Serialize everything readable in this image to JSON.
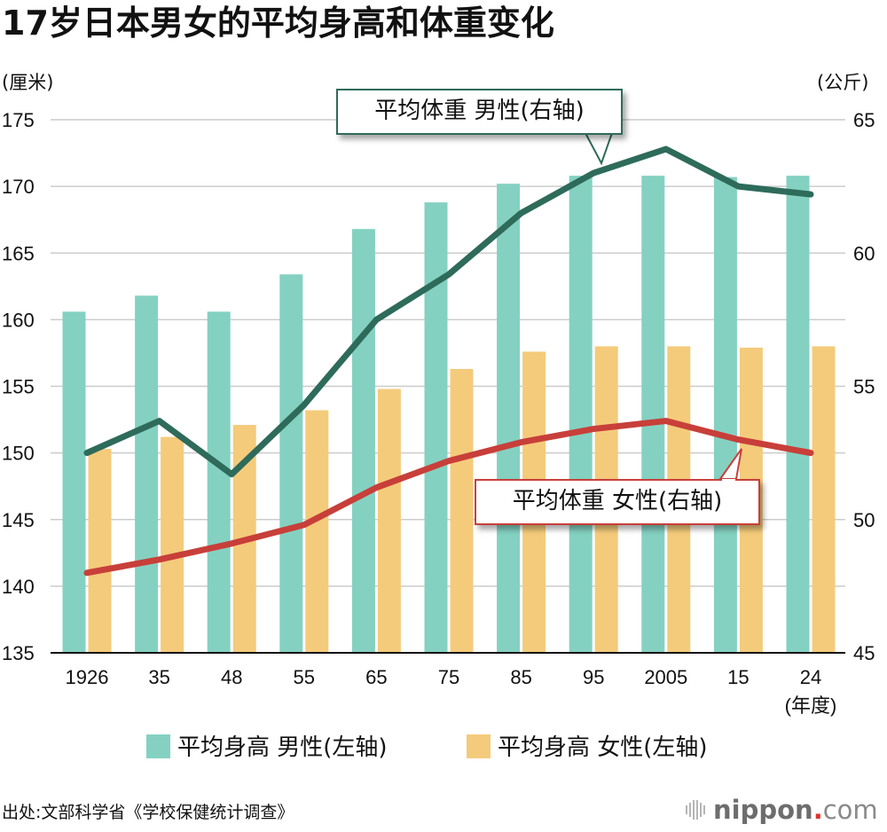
{
  "title": "17岁日本男女的平均身高和体重变化",
  "source": "出处:文部科学省《学校保健统计调查》",
  "logo": {
    "main": "nippon",
    "dot": ".",
    "suffix": "com"
  },
  "colors": {
    "male_height": "#84d1c1",
    "female_height": "#f4cb7b",
    "male_weight": "#2e6b5a",
    "female_weight": "#c83f3a",
    "grid": "#cccccc",
    "axis": "#111111"
  },
  "chart_data": {
    "type": "bar+line",
    "title": "17岁日本男女的平均身高和体重变化",
    "xlabel": "(年度)",
    "ylabel_left": "(厘米)",
    "ylabel_right": "(公斤)",
    "categories": [
      "1926",
      "35",
      "48",
      "55",
      "65",
      "75",
      "85",
      "95",
      "2005",
      "15",
      "24"
    ],
    "ylim_left": [
      135,
      175
    ],
    "yticks_left": [
      135,
      140,
      145,
      150,
      155,
      160,
      165,
      170,
      175
    ],
    "ylim_right": [
      45,
      65
    ],
    "yticks_right": [
      45,
      50,
      55,
      60,
      65
    ],
    "grid": true,
    "legend_position": "bottom",
    "series": [
      {
        "name": "平均身高 男性(左轴)",
        "type": "bar",
        "axis": "left",
        "values": [
          160.6,
          161.8,
          160.6,
          163.4,
          166.8,
          168.8,
          170.2,
          170.8,
          170.8,
          170.7,
          170.8
        ]
      },
      {
        "name": "平均身高 女性(左轴)",
        "type": "bar",
        "axis": "left",
        "values": [
          150.3,
          151.2,
          152.1,
          153.2,
          154.8,
          156.3,
          157.6,
          158.0,
          158.0,
          157.9,
          158.0
        ]
      },
      {
        "name": "平均体重 男性(右轴)",
        "type": "line",
        "axis": "right",
        "values": [
          52.5,
          53.7,
          51.7,
          54.3,
          57.5,
          59.2,
          61.5,
          63.0,
          63.9,
          62.5,
          62.2
        ]
      },
      {
        "name": "平均体重 女性(右轴)",
        "type": "line",
        "axis": "right",
        "values": [
          48.0,
          48.5,
          49.1,
          49.8,
          51.2,
          52.2,
          52.9,
          53.4,
          53.7,
          53.0,
          52.5
        ]
      }
    ],
    "annotations": [
      "平均体重 男性(右轴)",
      "平均体重 女性(右轴)"
    ]
  }
}
